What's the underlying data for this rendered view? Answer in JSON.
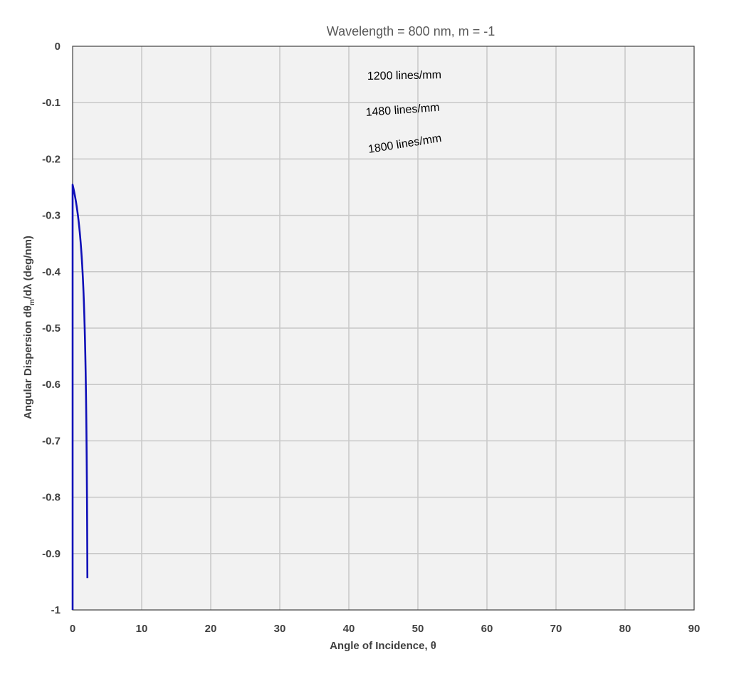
{
  "chart_data": {
    "type": "line",
    "title": "Wavelength = 800 nm, m = -1",
    "xlabel": "Angle of Incidence, θ",
    "ylabel_parts": [
      "Angular Dispersion dθ",
      "m",
      "/dλ (deg/nm)"
    ],
    "xlim": [
      0,
      90
    ],
    "ylim": [
      -1,
      0
    ],
    "x_ticks": [
      "0",
      "10",
      "20",
      "30",
      "40",
      "50",
      "60",
      "70",
      "80",
      "90"
    ],
    "y_ticks": [
      "0",
      "-0.1",
      "-0.2",
      "-0.3",
      "-0.4",
      "-0.5",
      "-0.6",
      "-0.7",
      "-0.8",
      "-0.9",
      "-1"
    ],
    "grid": true,
    "wavelength_nm": 800,
    "order": -1,
    "series": [
      {
        "name": "1200 lines/mm",
        "lines_per_mm": 1200
      },
      {
        "name": "1480 lines/mm",
        "lines_per_mm": 1480
      },
      {
        "name": "1800 lines/mm",
        "lines_per_mm": 1800
      }
    ]
  },
  "colors": {
    "plot_background": "#f2f2f2",
    "grid": "#c8c8c8",
    "curve": "#1010b8",
    "axis": "#404040"
  }
}
